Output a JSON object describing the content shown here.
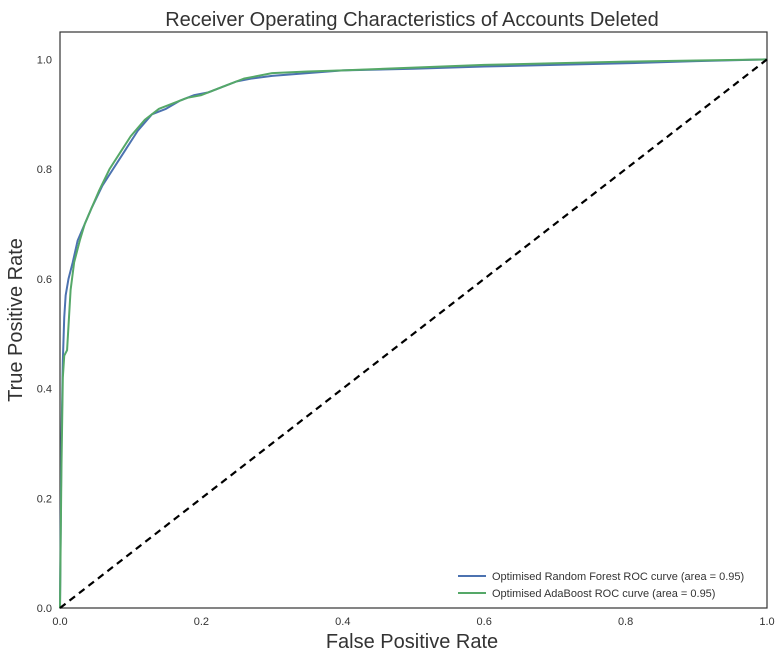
{
  "chart_data": {
    "type": "line",
    "title": "Receiver Operating Characteristics of Accounts Deleted",
    "xlabel": "False Positive Rate",
    "ylabel": "True Positive Rate",
    "xlim": [
      0,
      1
    ],
    "ylim": [
      0,
      1.05
    ],
    "xticks": [
      "0.0",
      "0.2",
      "0.4",
      "0.6",
      "0.8",
      "1.0"
    ],
    "yticks": [
      "0.0",
      "0.2",
      "0.4",
      "0.6",
      "0.8",
      "1.0"
    ],
    "grid": false,
    "legend_position": "bottom-right",
    "series": [
      {
        "name": "Optimised Random Forest ROC curve (area = 0.95)",
        "color": "#4c72b0",
        "x": [
          0.0,
          0.002,
          0.004,
          0.006,
          0.008,
          0.012,
          0.018,
          0.025,
          0.035,
          0.045,
          0.06,
          0.075,
          0.09,
          0.11,
          0.13,
          0.15,
          0.17,
          0.19,
          0.21,
          0.23,
          0.25,
          0.27,
          0.3,
          0.35,
          0.4,
          0.5,
          0.6,
          0.7,
          0.8,
          0.9,
          1.0
        ],
        "y": [
          0.0,
          0.3,
          0.45,
          0.53,
          0.57,
          0.6,
          0.63,
          0.67,
          0.7,
          0.73,
          0.77,
          0.8,
          0.83,
          0.87,
          0.9,
          0.91,
          0.925,
          0.935,
          0.94,
          0.95,
          0.96,
          0.965,
          0.97,
          0.975,
          0.98,
          0.983,
          0.987,
          0.99,
          0.993,
          0.997,
          1.0
        ]
      },
      {
        "name": "Optimised AdaBoost ROC curve (area = 0.95)",
        "color": "#55a868",
        "x": [
          0.0,
          0.002,
          0.004,
          0.006,
          0.01,
          0.015,
          0.02,
          0.028,
          0.035,
          0.045,
          0.055,
          0.07,
          0.085,
          0.1,
          0.12,
          0.14,
          0.16,
          0.18,
          0.2,
          0.22,
          0.24,
          0.26,
          0.3,
          0.35,
          0.4,
          0.5,
          0.6,
          0.7,
          0.8,
          0.9,
          1.0
        ],
        "y": [
          0.0,
          0.25,
          0.42,
          0.46,
          0.47,
          0.58,
          0.63,
          0.67,
          0.7,
          0.73,
          0.76,
          0.8,
          0.83,
          0.86,
          0.89,
          0.91,
          0.92,
          0.93,
          0.935,
          0.945,
          0.955,
          0.965,
          0.975,
          0.978,
          0.98,
          0.985,
          0.99,
          0.993,
          0.996,
          0.998,
          1.0
        ]
      },
      {
        "name": "",
        "color": "#000000",
        "dashed": true,
        "x": [
          0,
          1
        ],
        "y": [
          0,
          1
        ]
      }
    ]
  }
}
